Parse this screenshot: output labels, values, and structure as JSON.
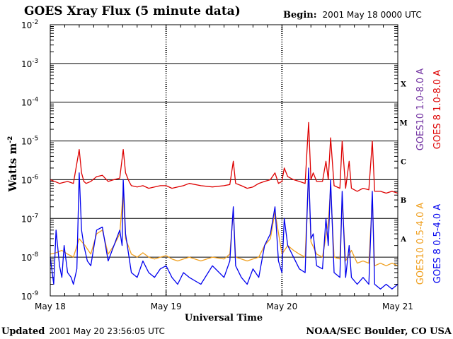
{
  "chart_data": {
    "type": "line",
    "title": "GOES Xray Flux (5 minute data)",
    "begin": {
      "label": "Begin:",
      "value": "2001 May 18 0000 UTC"
    },
    "ylabel": "Watts m",
    "ylabel_superscript": "-2",
    "y_scale": "log",
    "ylim": [
      1e-09,
      0.01
    ],
    "y_ticks": [
      {
        "base": "10",
        "exp": "-2",
        "value": 0.01
      },
      {
        "base": "10",
        "exp": "-3",
        "value": 0.001
      },
      {
        "base": "10",
        "exp": "-4",
        "value": 0.0001
      },
      {
        "base": "10",
        "exp": "-5",
        "value": 1e-05
      },
      {
        "base": "10",
        "exp": "-6",
        "value": 1e-06
      },
      {
        "base": "10",
        "exp": "-7",
        "value": 1e-07
      },
      {
        "base": "10",
        "exp": "-8",
        "value": 1e-08
      },
      {
        "base": "10",
        "exp": "-9",
        "value": 1e-09
      }
    ],
    "xlabel": "Universal Time",
    "xlim": [
      0,
      3
    ],
    "x_ticks": [
      {
        "label": "May 18",
        "day": 0
      },
      {
        "label": "May 19",
        "day": 1
      },
      {
        "label": "May 20",
        "day": 2
      },
      {
        "label": "May 21",
        "day": 3
      }
    ],
    "grid": {
      "horizontal": true,
      "vertical_day_dividers": true
    },
    "flare_classes": [
      {
        "label": "X",
        "value": 0.0003
      },
      {
        "label": "M",
        "value": 3e-05
      },
      {
        "label": "C",
        "value": 3e-06
      },
      {
        "label": "B",
        "value": 3e-07
      },
      {
        "label": "A",
        "value": 3e-08
      }
    ],
    "series": [
      {
        "name": "GOES 8 1.0-8.0 A",
        "color": "#dd0000",
        "x": [
          0,
          0.08,
          0.15,
          0.2,
          0.25,
          0.27,
          0.29,
          0.31,
          0.35,
          0.4,
          0.45,
          0.5,
          0.55,
          0.6,
          0.63,
          0.65,
          0.68,
          0.7,
          0.75,
          0.8,
          0.85,
          0.9,
          0.95,
          1.0,
          1.05,
          1.1,
          1.15,
          1.2,
          1.3,
          1.4,
          1.5,
          1.55,
          1.58,
          1.6,
          1.65,
          1.7,
          1.75,
          1.8,
          1.85,
          1.9,
          1.94,
          1.97,
          2.0,
          2.02,
          2.05,
          2.1,
          2.15,
          2.2,
          2.23,
          2.25,
          2.27,
          2.3,
          2.35,
          2.38,
          2.4,
          2.42,
          2.45,
          2.5,
          2.52,
          2.55,
          2.58,
          2.6,
          2.65,
          2.7,
          2.75,
          2.78,
          2.8,
          2.85,
          2.9,
          2.95,
          3.0
        ],
        "y": [
          1e-06,
          8e-07,
          9e-07,
          8e-07,
          6e-06,
          1.5e-06,
          9e-07,
          8e-07,
          9e-07,
          1.2e-06,
          1.3e-06,
          9e-07,
          1e-06,
          1.1e-06,
          6e-06,
          1.5e-06,
          9e-07,
          7e-07,
          6.5e-07,
          7e-07,
          6e-07,
          6.5e-07,
          7e-07,
          7e-07,
          6e-07,
          6.5e-07,
          7e-07,
          8e-07,
          7e-07,
          6.5e-07,
          7e-07,
          7.5e-07,
          3e-06,
          8e-07,
          7e-07,
          6e-07,
          6.5e-07,
          8e-07,
          9e-07,
          1e-06,
          1.5e-06,
          8e-07,
          9e-07,
          2e-06,
          1.2e-06,
          1e-06,
          9e-07,
          8e-07,
          3e-05,
          1e-06,
          1.5e-06,
          9e-07,
          9e-07,
          3e-06,
          1e-06,
          1.2e-05,
          7e-07,
          6e-07,
          1e-05,
          6e-07,
          3e-06,
          6e-07,
          5e-07,
          6e-07,
          5.5e-07,
          1e-05,
          5e-07,
          5e-07,
          4.5e-07,
          5e-07,
          4.5e-07
        ]
      },
      {
        "name": "GOES10 1.0-8.0 A",
        "color": "#7030a0",
        "x": [],
        "y": []
      },
      {
        "name": "GOES 8 0.5-4.0 A",
        "color": "#0000ee",
        "x": [
          0,
          0.03,
          0.05,
          0.08,
          0.1,
          0.12,
          0.15,
          0.18,
          0.2,
          0.23,
          0.25,
          0.27,
          0.29,
          0.32,
          0.35,
          0.4,
          0.45,
          0.5,
          0.55,
          0.6,
          0.62,
          0.63,
          0.65,
          0.68,
          0.7,
          0.75,
          0.8,
          0.85,
          0.9,
          0.95,
          1.0,
          1.05,
          1.1,
          1.15,
          1.2,
          1.3,
          1.4,
          1.5,
          1.55,
          1.58,
          1.6,
          1.65,
          1.7,
          1.75,
          1.8,
          1.85,
          1.9,
          1.94,
          1.97,
          2.0,
          2.02,
          2.05,
          2.1,
          2.15,
          2.2,
          2.23,
          2.25,
          2.27,
          2.3,
          2.35,
          2.38,
          2.4,
          2.42,
          2.45,
          2.5,
          2.52,
          2.55,
          2.58,
          2.6,
          2.65,
          2.7,
          2.75,
          2.78,
          2.8,
          2.85,
          2.9,
          2.95,
          3.0
        ],
        "y": [
          1e-08,
          2e-09,
          5e-08,
          6e-09,
          3e-09,
          2e-08,
          4e-09,
          3e-09,
          2e-09,
          5e-09,
          1.5e-06,
          5e-08,
          2e-08,
          8e-09,
          6e-09,
          5e-08,
          6e-08,
          8e-09,
          2e-08,
          5e-08,
          2e-08,
          1e-06,
          4e-08,
          1e-08,
          4e-09,
          3e-09,
          8e-09,
          4e-09,
          3e-09,
          5e-09,
          6e-09,
          3e-09,
          2e-09,
          4e-09,
          3e-09,
          2e-09,
          6e-09,
          3e-09,
          8e-09,
          2e-07,
          6e-09,
          3e-09,
          2e-09,
          5e-09,
          3e-09,
          2e-08,
          4e-08,
          2e-07,
          8e-09,
          4e-09,
          1e-07,
          2e-08,
          1e-08,
          5e-09,
          4e-09,
          2e-06,
          3e-08,
          4e-08,
          6e-09,
          5e-09,
          1e-07,
          2e-08,
          1e-06,
          4e-09,
          3e-09,
          5e-07,
          3e-09,
          2e-08,
          3e-09,
          2e-09,
          3e-09,
          2e-09,
          5e-07,
          2e-09,
          1.5e-09,
          2e-09,
          1.5e-09,
          2e-09
        ]
      },
      {
        "name": "GOES10 0.5-4.0 A",
        "color": "#f0a020",
        "x": [
          0,
          0.05,
          0.1,
          0.15,
          0.2,
          0.25,
          0.3,
          0.35,
          0.4,
          0.45,
          0.5,
          0.55,
          0.6,
          0.63,
          0.65,
          0.7,
          0.75,
          0.8,
          0.85,
          0.9,
          0.95,
          1.0,
          1.05,
          1.1,
          1.15,
          1.2,
          1.3,
          1.4,
          1.5,
          1.55,
          1.58,
          1.6,
          1.65,
          1.7,
          1.75,
          1.8,
          1.85,
          1.9,
          1.94,
          2.0,
          2.05,
          2.1,
          2.15,
          2.2,
          2.23,
          2.25,
          2.3,
          2.35,
          2.4,
          2.42,
          2.45,
          2.5,
          2.52,
          2.55,
          2.6,
          2.65,
          2.7,
          2.75,
          2.78,
          2.8,
          2.85,
          2.9,
          2.95,
          3.0
        ],
        "y": [
          1.2e-08,
          1.3e-08,
          1.5e-08,
          1.2e-08,
          1e-08,
          3e-08,
          2e-08,
          1.2e-08,
          4e-08,
          5e-08,
          1.2e-08,
          2e-08,
          4e-08,
          5e-07,
          3e-08,
          1.2e-08,
          1e-08,
          1.3e-08,
          1e-08,
          9e-09,
          1e-08,
          1.1e-08,
          9e-09,
          8e-09,
          9e-09,
          1e-08,
          8e-09,
          1e-08,
          9e-09,
          1.2e-08,
          1.5e-07,
          1e-08,
          9e-09,
          8e-09,
          9e-09,
          1e-08,
          2e-08,
          3e-08,
          1.5e-07,
          1.2e-08,
          2e-08,
          1.5e-08,
          1.2e-08,
          1e-08,
          1.5e-06,
          2.5e-08,
          1.2e-08,
          1e-08,
          8e-08,
          6e-07,
          1e-08,
          9e-09,
          3e-07,
          8e-09,
          1.5e-08,
          7e-09,
          8e-09,
          7e-09,
          3e-07,
          6e-09,
          7e-09,
          6e-09,
          7e-09,
          6e-09
        ]
      }
    ]
  },
  "footer": {
    "updated_label": "Updated",
    "updated_value": "2001 May 20 23:56:05 UTC",
    "source": "NOAA/SEC Boulder, CO USA"
  }
}
